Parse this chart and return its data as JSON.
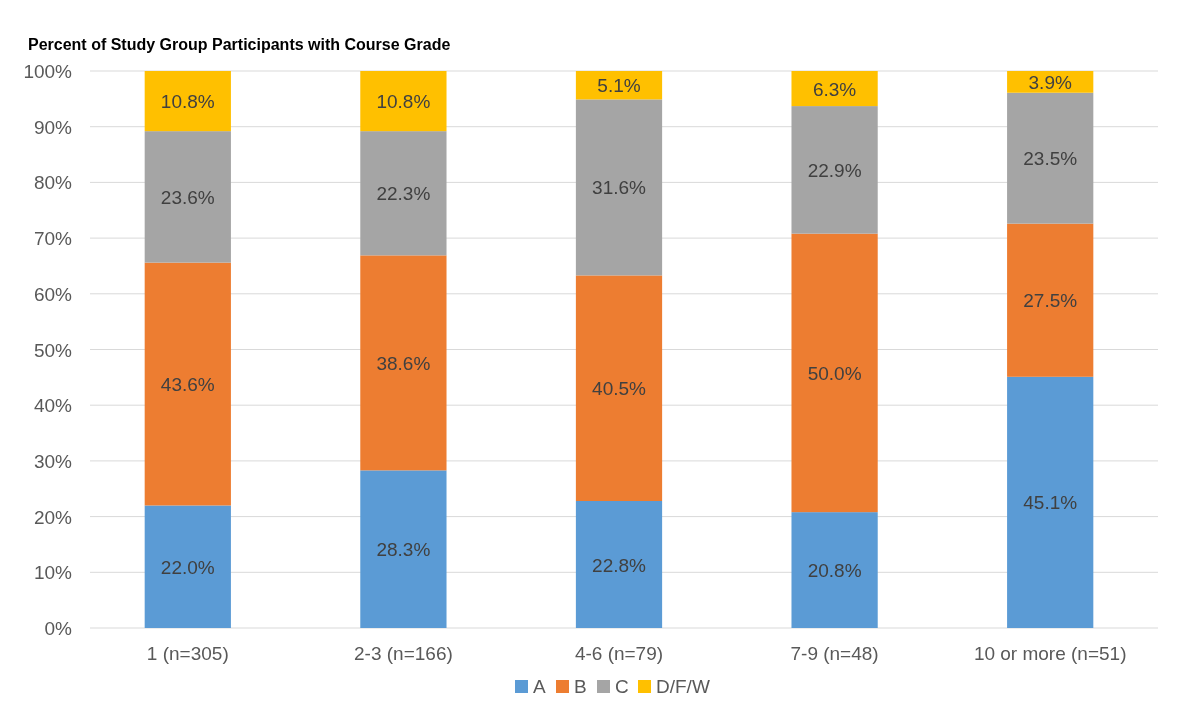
{
  "chart_data": {
    "type": "bar",
    "title": "Percent of Study Group Participants with Course Grade",
    "categories": [
      "1 (n=305)",
      "2-3 (n=166)",
      "4-6 (n=79)",
      "7-9 (n=48)",
      "10 or more (n=51)"
    ],
    "stacked": true,
    "series": [
      {
        "name": "A",
        "color": "#5b9bd5",
        "values": [
          22.0,
          28.3,
          22.8,
          20.8,
          45.1
        ],
        "value_labels": [
          "22.0%",
          "28.3%",
          "22.8%",
          "20.8%",
          "45.1%"
        ]
      },
      {
        "name": "B",
        "color": "#ed7d31",
        "values": [
          43.6,
          38.6,
          40.5,
          50.0,
          27.5
        ],
        "value_labels": [
          "43.6%",
          "38.6%",
          "40.5%",
          "50.0%",
          "27.5%"
        ]
      },
      {
        "name": "C",
        "color": "#a5a5a5",
        "values": [
          23.6,
          22.3,
          31.6,
          22.9,
          23.5
        ],
        "value_labels": [
          "23.6%",
          "22.3%",
          "31.6%",
          "22.9%",
          "23.5%"
        ]
      },
      {
        "name": "D/F/W",
        "color": "#ffc000",
        "values": [
          10.8,
          10.8,
          5.1,
          6.3,
          3.9
        ],
        "value_labels": [
          "10.8%",
          "10.8%",
          "5.1%",
          "6.3%",
          "3.9%"
        ]
      }
    ],
    "ylim": [
      0,
      100
    ],
    "yticks": [
      {
        "value": 0,
        "label": "0%"
      },
      {
        "value": 10,
        "label": "10%"
      },
      {
        "value": 20,
        "label": "20%"
      },
      {
        "value": 30,
        "label": "30%"
      },
      {
        "value": 40,
        "label": "40%"
      },
      {
        "value": 50,
        "label": "50%"
      },
      {
        "value": 60,
        "label": "60%"
      },
      {
        "value": 70,
        "label": "70%"
      },
      {
        "value": 80,
        "label": "80%"
      },
      {
        "value": 90,
        "label": "90%"
      },
      {
        "value": 100,
        "label": "100%"
      }
    ],
    "grid": "y",
    "legend": "bottom"
  }
}
